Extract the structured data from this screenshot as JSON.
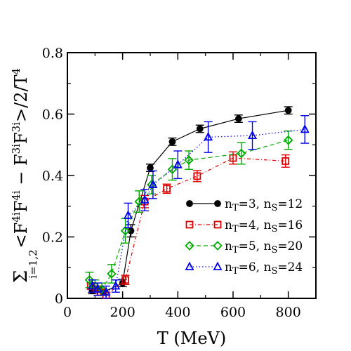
{
  "chart_data": {
    "type": "scatter",
    "xlabel": "T (MeV)",
    "ylabel_parts": {
      "sum": "Σ",
      "sum_sub": "i=1,2",
      "body1": "<F",
      "sup1": "4i",
      "body2": "F",
      "sup2": "4i",
      "body3": " − F",
      "sup3": "3i",
      "body4": "F",
      "sup4": "3i",
      "body5": ">/2/T",
      "sup5": "4"
    },
    "xlim": [
      0,
      900
    ],
    "ylim": [
      0,
      0.8
    ],
    "xticks": [
      0,
      200,
      400,
      600,
      800
    ],
    "yticks": [
      0,
      0.2,
      0.4,
      0.6,
      0.8
    ],
    "xtick_labels": [
      "0",
      "200",
      "400",
      "600",
      "800"
    ],
    "ytick_labels": [
      "0",
      "0.2",
      "0.4",
      "0.6",
      "0.8"
    ],
    "legend_position": "lower-right",
    "series": [
      {
        "label": "n_T=3, n_S=12",
        "label_parts": [
          "n",
          "T",
          "=3, n",
          "S",
          "=12"
        ],
        "color": "#000000",
        "marker": "circle",
        "line": "solid",
        "x": [
          90,
          100,
          115,
          130,
          200,
          230,
          300,
          380,
          480,
          620,
          800
        ],
        "y": [
          0.025,
          0.03,
          0.03,
          0.02,
          0.05,
          0.22,
          0.425,
          0.51,
          0.552,
          0.585,
          0.612
        ],
        "err": [
          0.01,
          0.01,
          0.01,
          0.01,
          0.012,
          0.02,
          0.012,
          0.012,
          0.012,
          0.012,
          0.012
        ]
      },
      {
        "label": "n_T=4, n_S=16",
        "label_parts": [
          "n",
          "T",
          "=4, n",
          "S",
          "=16"
        ],
        "color": "#dd0000",
        "marker": "square",
        "line": "dash-dot",
        "x": [
          85,
          105,
          120,
          140,
          210,
          280,
          360,
          470,
          600,
          790
        ],
        "y": [
          0.04,
          0.03,
          0.02,
          0.01,
          0.06,
          0.315,
          0.357,
          0.398,
          0.457,
          0.447
        ],
        "err": [
          0.01,
          0.01,
          0.01,
          0.01,
          0.015,
          0.02,
          0.015,
          0.018,
          0.02,
          0.02
        ]
      },
      {
        "label": "n_T=5, n_S=20",
        "label_parts": [
          "n",
          "T",
          "=5, n",
          "S",
          "=20"
        ],
        "color": "#00aa00",
        "marker": "diamond",
        "line": "dashed",
        "x": [
          80,
          100,
          125,
          160,
          210,
          260,
          305,
          380,
          440,
          630,
          800
        ],
        "y": [
          0.06,
          0.04,
          0.03,
          0.08,
          0.22,
          0.315,
          0.37,
          0.42,
          0.45,
          0.472,
          0.515
        ],
        "err": [
          0.025,
          0.02,
          0.02,
          0.03,
          0.04,
          0.035,
          0.03,
          0.035,
          0.03,
          0.035,
          0.03
        ]
      },
      {
        "label": "n_T=6, n_S=24",
        "label_parts": [
          "n",
          "T",
          "=6, n",
          "S",
          "=24"
        ],
        "color": "#0000ee",
        "marker": "triangle",
        "line": "dotted",
        "x": [
          90,
          110,
          140,
          175,
          220,
          280,
          310,
          400,
          510,
          670,
          860
        ],
        "y": [
          0.04,
          0.03,
          0.02,
          0.04,
          0.27,
          0.32,
          0.37,
          0.435,
          0.525,
          0.53,
          0.55
        ],
        "err": [
          0.02,
          0.02,
          0.02,
          0.02,
          0.04,
          0.035,
          0.045,
          0.045,
          0.05,
          0.045,
          0.045
        ]
      }
    ]
  }
}
